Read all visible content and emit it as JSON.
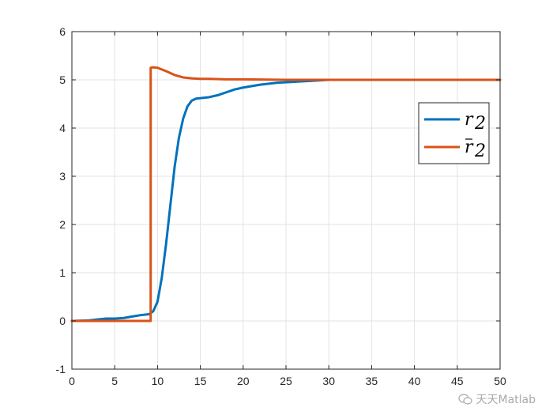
{
  "chart_data": {
    "type": "line",
    "title": "",
    "xlabel": "",
    "ylabel": "",
    "xlim": [
      0,
      50
    ],
    "ylim": [
      -1,
      6
    ],
    "xticks": [
      0,
      5,
      10,
      15,
      20,
      25,
      30,
      35,
      40,
      45,
      50
    ],
    "yticks": [
      -1,
      0,
      1,
      2,
      3,
      4,
      5,
      6
    ],
    "grid": true,
    "legend_position": "right",
    "series": [
      {
        "name": "r_2",
        "color": "#0072BD",
        "x": [
          0,
          2,
          3,
          4,
          5,
          6,
          7,
          8,
          9,
          9.5,
          10,
          10.5,
          11,
          11.5,
          12,
          12.5,
          13,
          13.5,
          14,
          14.5,
          15,
          16,
          17,
          18,
          19,
          20,
          22,
          24,
          26,
          28,
          30,
          35,
          40,
          45,
          50
        ],
        "y": [
          0,
          0.01,
          0.03,
          0.05,
          0.05,
          0.06,
          0.09,
          0.12,
          0.14,
          0.2,
          0.4,
          0.9,
          1.6,
          2.4,
          3.2,
          3.8,
          4.2,
          4.45,
          4.57,
          4.61,
          4.62,
          4.64,
          4.68,
          4.74,
          4.8,
          4.84,
          4.9,
          4.94,
          4.96,
          4.98,
          5.0,
          5.0,
          5.0,
          5.0,
          5.0
        ]
      },
      {
        "name": "r̄_2",
        "color": "#D95319",
        "x": [
          0,
          9.2,
          9.2,
          9.5,
          10,
          11,
          12,
          13,
          14,
          15,
          16,
          18,
          20,
          25,
          30,
          35,
          40,
          45,
          50
        ],
        "y": [
          0,
          0,
          5.25,
          5.26,
          5.25,
          5.18,
          5.1,
          5.05,
          5.03,
          5.02,
          5.02,
          5.01,
          5.01,
          5.0,
          5.0,
          5.0,
          5.0,
          5.0,
          5.0
        ]
      }
    ],
    "legend": [
      "r_2",
      "r̄_2"
    ]
  },
  "watermark": {
    "text": "天天Matlab",
    "icon": "wechat-icon"
  }
}
